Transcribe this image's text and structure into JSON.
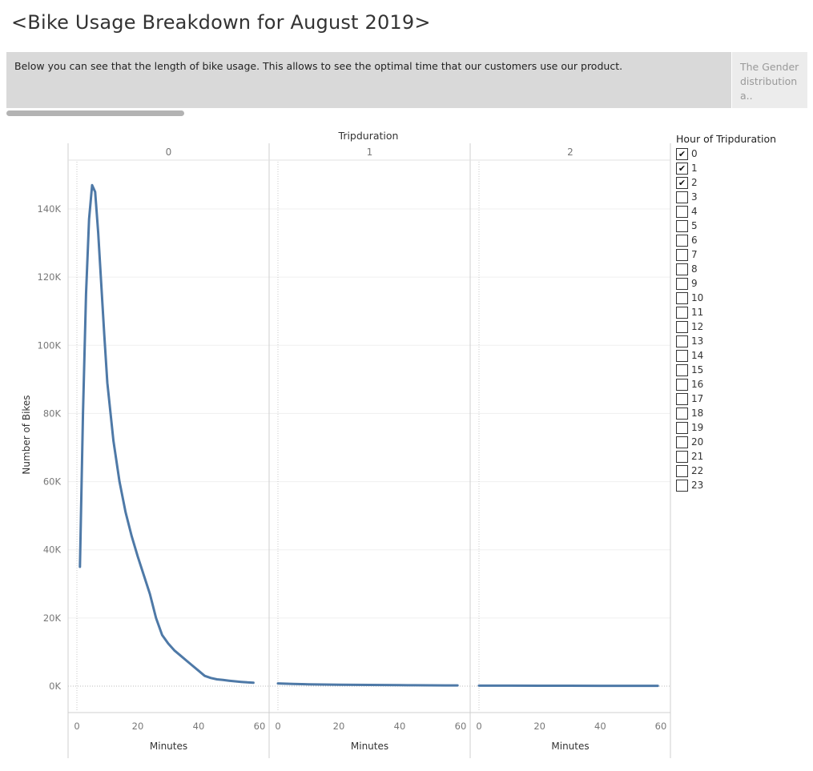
{
  "page": {
    "title": "<Bike Usage Breakdown for August 2019>",
    "caption": "Below you can see that the length of bike usage. This allows to see the optimal time that our customers use our product.",
    "next_caption": [
      "The Gender",
      "distribution a.."
    ]
  },
  "legend": {
    "title": "Hour of Tripduration",
    "items": [
      {
        "label": "0",
        "checked": true
      },
      {
        "label": "1",
        "checked": true
      },
      {
        "label": "2",
        "checked": true
      },
      {
        "label": "3",
        "checked": false
      },
      {
        "label": "4",
        "checked": false
      },
      {
        "label": "5",
        "checked": false
      },
      {
        "label": "6",
        "checked": false
      },
      {
        "label": "7",
        "checked": false
      },
      {
        "label": "8",
        "checked": false
      },
      {
        "label": "9",
        "checked": false
      },
      {
        "label": "10",
        "checked": false
      },
      {
        "label": "11",
        "checked": false
      },
      {
        "label": "12",
        "checked": false
      },
      {
        "label": "13",
        "checked": false
      },
      {
        "label": "14",
        "checked": false
      },
      {
        "label": "15",
        "checked": false
      },
      {
        "label": "16",
        "checked": false
      },
      {
        "label": "17",
        "checked": false
      },
      {
        "label": "18",
        "checked": false
      },
      {
        "label": "19",
        "checked": false
      },
      {
        "label": "20",
        "checked": false
      },
      {
        "label": "21",
        "checked": false
      },
      {
        "label": "22",
        "checked": false
      },
      {
        "label": "23",
        "checked": false
      }
    ]
  },
  "chart_data": {
    "type": "line",
    "column_header": "Tripduration",
    "xlabel": "Minutes",
    "ylabel": "Number of Bikes",
    "xlim": [
      0,
      60
    ],
    "ylim": [
      0,
      150000
    ],
    "xticks": [
      0,
      20,
      40,
      60
    ],
    "yticks": [
      0,
      20000,
      40000,
      60000,
      80000,
      100000,
      120000,
      140000
    ],
    "ytick_labels": [
      "0K",
      "20K",
      "40K",
      "60K",
      "80K",
      "100K",
      "120K",
      "140K"
    ],
    "line_color": "#4e79a7",
    "grid": true,
    "panels": [
      {
        "label": "0",
        "x": [
          1,
          2,
          3,
          4,
          5,
          6,
          7,
          8,
          9,
          10,
          12,
          14,
          16,
          18,
          20,
          22,
          24,
          26,
          28,
          30,
          32,
          34,
          36,
          38,
          40,
          42,
          44,
          46,
          48,
          50,
          52,
          54,
          56,
          58
        ],
        "y": [
          35000,
          80000,
          115000,
          137000,
          147000,
          145000,
          133000,
          118000,
          103000,
          89000,
          72000,
          60000,
          51000,
          44000,
          38000,
          32500,
          27000,
          20000,
          15000,
          12500,
          10500,
          9000,
          7500,
          6000,
          4500,
          3000,
          2400,
          2000,
          1800,
          1600,
          1400,
          1250,
          1100,
          1000
        ]
      },
      {
        "label": "1",
        "x": [
          0,
          5,
          10,
          15,
          20,
          25,
          30,
          35,
          40,
          45,
          50,
          55,
          59
        ],
        "y": [
          800,
          650,
          550,
          480,
          420,
          380,
          350,
          320,
          290,
          260,
          240,
          220,
          200
        ]
      },
      {
        "label": "2",
        "x": [
          0,
          10,
          20,
          30,
          40,
          50,
          59
        ],
        "y": [
          150,
          130,
          120,
          110,
          100,
          95,
          90
        ]
      }
    ]
  }
}
